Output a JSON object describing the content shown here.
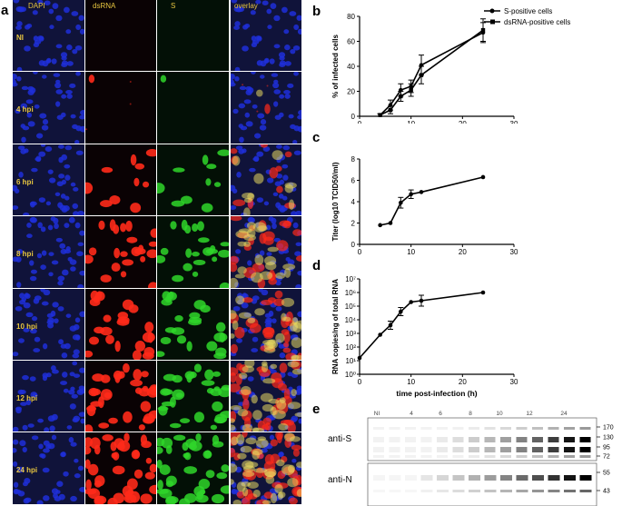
{
  "panel_letters": {
    "a": "a",
    "b": "b",
    "c": "c",
    "d": "d",
    "e": "e"
  },
  "micrographs": {
    "columns": [
      "DAPI",
      "dsRNA",
      "S",
      "overlay"
    ],
    "rows": [
      "NI",
      "4 hpi",
      "6 hpi",
      "8 hpi",
      "10 hpi",
      "12 hpi",
      "24 hpi"
    ],
    "colors": {
      "DAPI": "#1f2fd9",
      "dsRNA": "#ff2a1a",
      "S": "#2fd62a",
      "label": "#e8c640"
    }
  },
  "chart_data": [
    {
      "type": "line",
      "panel": "b",
      "ylabel": "% of infected cells",
      "xlabel": "",
      "xlim": [
        0,
        30
      ],
      "ylim": [
        0,
        80
      ],
      "xticks": [
        0,
        10,
        20,
        30
      ],
      "yticks": [
        0,
        20,
        40,
        60,
        80
      ],
      "legend_position": "top-right",
      "series": [
        {
          "name": "S-positive cells",
          "marker": "circle",
          "x": [
            4,
            6,
            8,
            10,
            12,
            24
          ],
          "y": [
            1,
            9,
            21,
            24,
            41,
            67
          ],
          "err": [
            1,
            4,
            5,
            5,
            8,
            8
          ]
        },
        {
          "name": "dsRNA-positive cells",
          "marker": "square",
          "x": [
            4,
            6,
            8,
            10,
            12,
            24
          ],
          "y": [
            1,
            5,
            16,
            21,
            33,
            69
          ],
          "err": [
            1,
            3,
            4,
            5,
            7,
            9
          ]
        }
      ]
    },
    {
      "type": "line",
      "panel": "c",
      "ylabel": "Titer (log10 TCID50/ml)",
      "xlabel": "",
      "xlim": [
        0,
        30
      ],
      "ylim": [
        0,
        8
      ],
      "xticks": [
        0,
        10,
        20,
        30
      ],
      "yticks": [
        0,
        2,
        4,
        6,
        8
      ],
      "series": [
        {
          "x": [
            4,
            6,
            8,
            10,
            12,
            24
          ],
          "y": [
            1.8,
            2.0,
            3.9,
            4.7,
            4.9,
            6.3
          ],
          "err": [
            0,
            0,
            0.5,
            0.4,
            0,
            0
          ]
        }
      ]
    },
    {
      "type": "line",
      "panel": "d",
      "ylabel": "RNA copies/ng of total RNA",
      "xlabel": "time post-infection (h)",
      "scale": "log10",
      "xlim": [
        0,
        30
      ],
      "ylim": [
        0,
        7
      ],
      "xticks": [
        0,
        10,
        20,
        30
      ],
      "ytick_labels": [
        "10⁰",
        "10¹",
        "10²",
        "10³",
        "10⁴",
        "10⁵",
        "10⁶",
        "10⁷"
      ],
      "series": [
        {
          "x": [
            0,
            4,
            6,
            8,
            10,
            12,
            24
          ],
          "log10_y": [
            1.2,
            2.9,
            3.6,
            4.6,
            5.3,
            5.4,
            6.0
          ],
          "err": [
            0,
            0,
            0.3,
            0.3,
            0,
            0.4,
            0
          ]
        }
      ]
    }
  ],
  "blot": {
    "lane_labels": [
      "NI",
      "4",
      "6",
      "8",
      "10",
      "12",
      "24"
    ],
    "antibodies": [
      "anti-S",
      "anti-N"
    ],
    "top_markers": [
      "170",
      "130",
      "95",
      "72"
    ],
    "bottom_markers": [
      "55",
      "43"
    ]
  }
}
